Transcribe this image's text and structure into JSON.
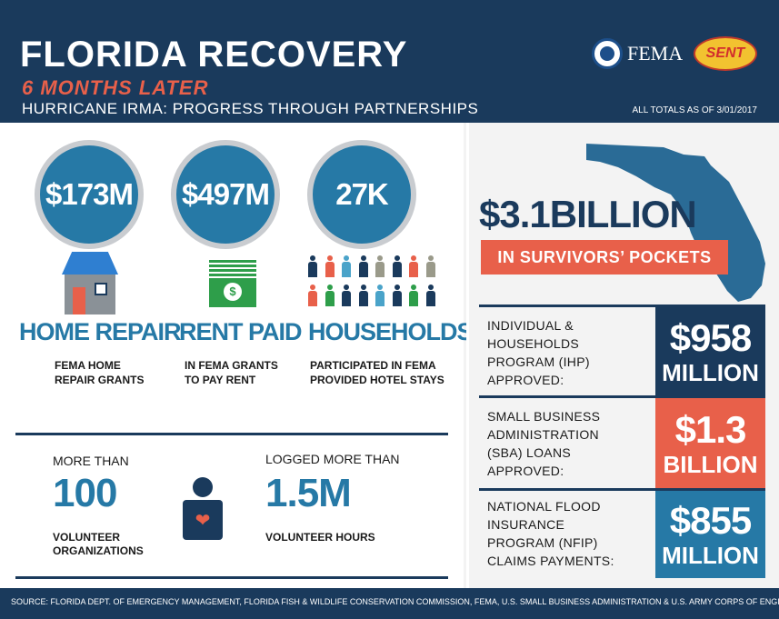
{
  "header": {
    "title": "FLORIDA RECOVERY",
    "subtitle": "6 MONTHS  LATER",
    "tagline": "HURRICANE IRMA: PROGRESS THROUGH PARTNERSHIPS",
    "as_of": "ALL TOTALS AS OF 3/01/2017",
    "fema_logo": "FEMA",
    "sent_logo": "SENT"
  },
  "stats": [
    {
      "amount": "$173M",
      "title": "HOME REPAIR",
      "desc_line1": "FEMA HOME",
      "desc_line2": "REPAIR GRANTS",
      "icon": "house-icon"
    },
    {
      "amount": "$497M",
      "title": "RENT PAID",
      "desc_line1": "IN FEMA GRANTS",
      "desc_line2": "TO PAY RENT",
      "icon": "money-icon"
    },
    {
      "amount": "27K",
      "title": "HOUSEHOLDS",
      "desc_line1": "PARTICIPATED IN FEMA",
      "desc_line2": "PROVIDED HOTEL STAYS",
      "icon": "people-icon"
    }
  ],
  "volunteers": {
    "orgs_label": "MORE THAN",
    "orgs_value": "100",
    "orgs_desc_line1": "VOLUNTEER",
    "orgs_desc_line2": "ORGANIZATIONS",
    "hours_label": "LOGGED MORE THAN",
    "hours_value": "1.5M",
    "hours_desc": "VOLUNTEER HOURS",
    "icon": "volunteer-heart-icon"
  },
  "summary": {
    "total": "$3.1BILLION",
    "total_label": "IN SURVIVORS’ POCKETS"
  },
  "programs": [
    {
      "lines": [
        "INDIVIDUAL &",
        "HOUSEHOLDS",
        "PROGRAM (IHP)",
        "APPROVED:"
      ],
      "value": "$958",
      "unit": "MILLION",
      "color": "#1a3a5c"
    },
    {
      "lines": [
        "SMALL BUSINESS",
        "ADMINISTRATION",
        "(SBA) LOANS",
        "APPROVED:"
      ],
      "value": "$1.3",
      "unit": "BILLION",
      "color": "#e8604a"
    },
    {
      "lines": [
        "NATIONAL FLOOD",
        "INSURANCE",
        "PROGRAM (NFIP)",
        "CLAIMS PAYMENTS:"
      ],
      "value": "$855",
      "unit": "MILLION",
      "color": "#2679a6"
    }
  ],
  "footer": "SOURCE: FLORIDA DEPT. OF EMERGENCY MANAGEMENT, FLORIDA FISH & WILDLIFE CONSERVATION COMMISSION, FEMA, U.S. SMALL BUSINESS ADMINISTRATION & U.S. ARMY CORPS OF ENGINEERS",
  "colors": {
    "navy": "#1a3a5c",
    "blue": "#2679a6",
    "coral": "#e8604a",
    "green": "#2e9e4a"
  }
}
